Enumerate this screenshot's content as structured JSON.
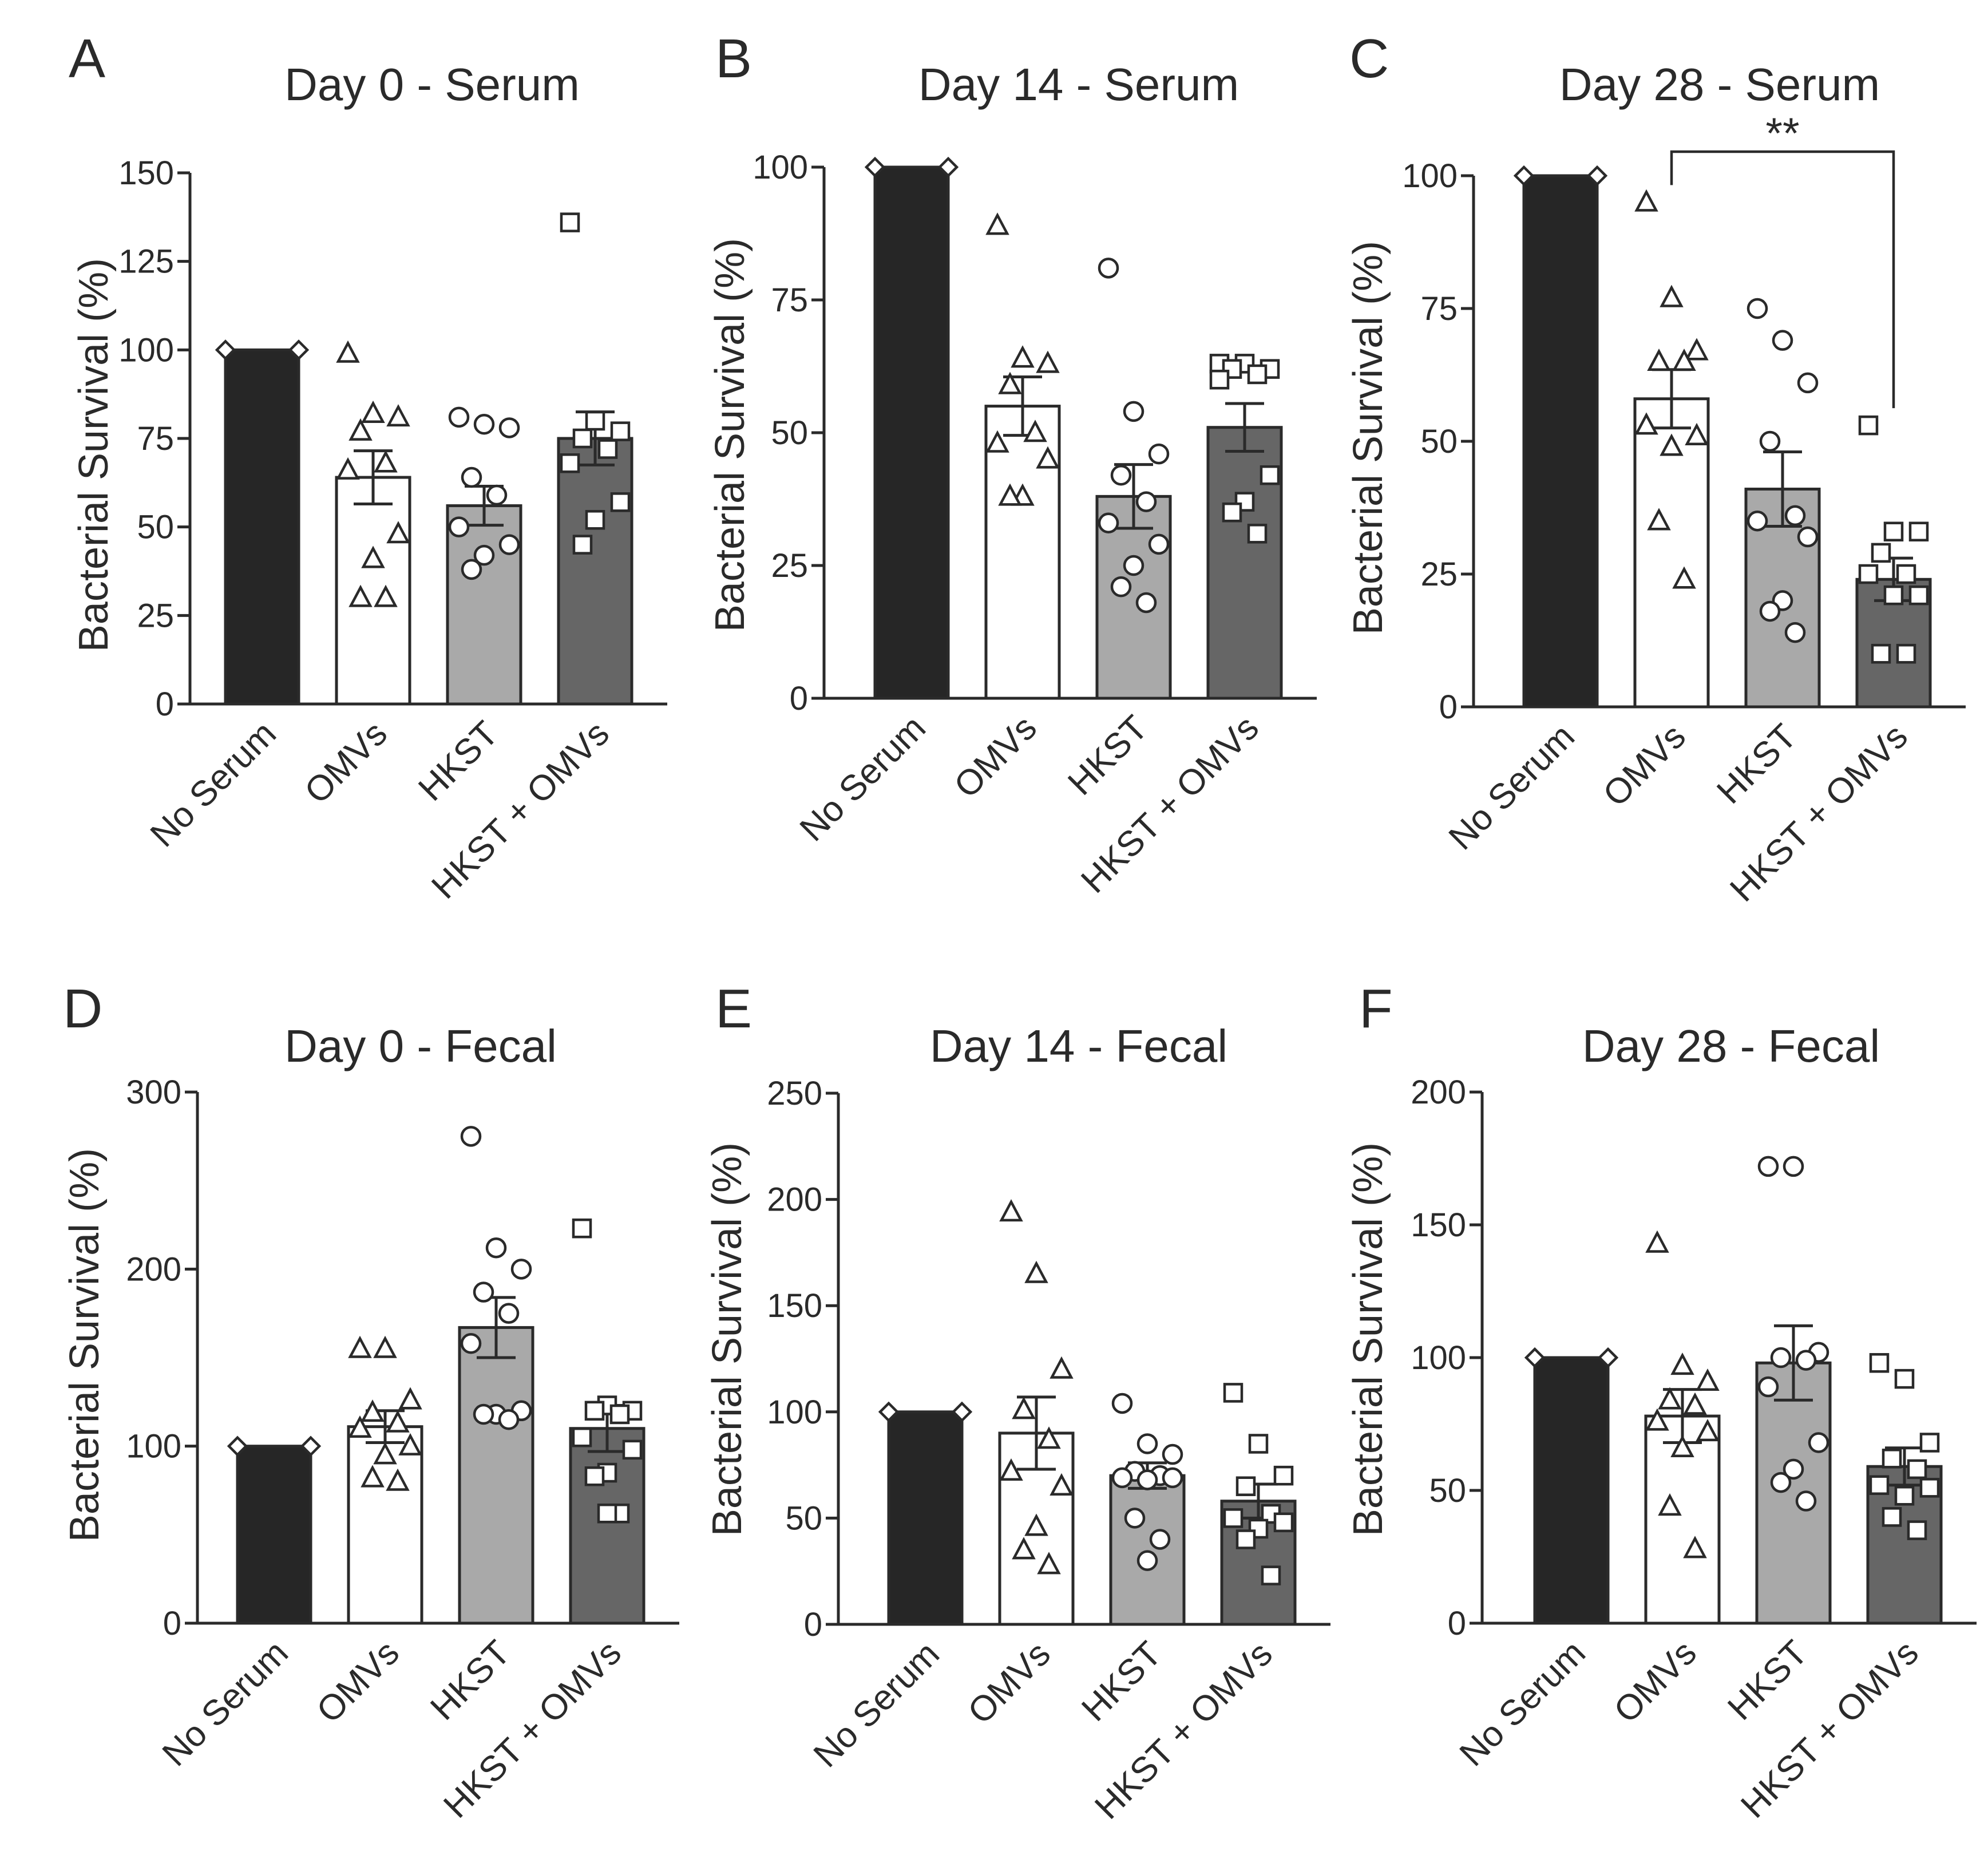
{
  "chart_data": [
    {
      "panel": "A",
      "type": "bar",
      "title": "Day 0 - Serum",
      "ylabel": "Bacterial Survival (%)",
      "ylim": [
        0,
        150
      ],
      "yticks": [
        0,
        25,
        50,
        75,
        100,
        125,
        150
      ],
      "categories": [
        "No Serum",
        "OMVs",
        "HKST",
        "HKST + OMVs"
      ],
      "bar_colors": [
        "#262626",
        "#ffffff",
        "#a9a9a9",
        "#666666"
      ],
      "markers": [
        "diamond",
        "triangle",
        "circle",
        "square"
      ],
      "values": [
        100,
        64,
        56,
        75
      ],
      "sem": [
        0,
        7.5,
        5.5,
        7.5
      ],
      "points": [
        [
          100,
          100
        ],
        [
          99,
          82,
          81,
          77,
          68,
          66,
          48,
          41,
          30,
          30
        ],
        [
          81,
          79,
          78,
          64,
          59,
          50,
          45,
          42,
          38
        ],
        [
          136,
          80,
          77,
          75,
          72,
          68,
          57,
          52,
          45
        ]
      ],
      "significance": null
    },
    {
      "panel": "B",
      "type": "bar",
      "title": "Day 14 - Serum",
      "ylabel": "Bacterial Survival (%)",
      "ylim": [
        0,
        100
      ],
      "yticks": [
        0,
        25,
        50,
        75,
        100
      ],
      "categories": [
        "No Serum",
        "OMVs",
        "HKST",
        "HKST + OMVs"
      ],
      "bar_colors": [
        "#262626",
        "#ffffff",
        "#a9a9a9",
        "#666666"
      ],
      "markers": [
        "diamond",
        "triangle",
        "circle",
        "square"
      ],
      "values": [
        100,
        55,
        38,
        51
      ],
      "sem": [
        0,
        5.5,
        6,
        4.5
      ],
      "points": [
        [
          100,
          100
        ],
        [
          89,
          64,
          63,
          59,
          50,
          48,
          45,
          38,
          38
        ],
        [
          81,
          54,
          46,
          42,
          37,
          33,
          29,
          25,
          21,
          18
        ],
        [
          63,
          63,
          62,
          62,
          61,
          60,
          42,
          37,
          35,
          31
        ]
      ],
      "significance": null
    },
    {
      "panel": "C",
      "type": "bar",
      "title": "Day 28 - Serum",
      "ylabel": "Bacterial Survival (%)",
      "ylim": [
        0,
        100
      ],
      "yticks": [
        0,
        25,
        50,
        75,
        100
      ],
      "categories": [
        "No Serum",
        "OMVs",
        "HKST",
        "HKST + OMVs"
      ],
      "bar_colors": [
        "#262626",
        "#ffffff",
        "#a9a9a9",
        "#666666"
      ],
      "markers": [
        "diamond",
        "triangle",
        "circle",
        "square"
      ],
      "values": [
        100,
        58,
        41,
        24
      ],
      "sem": [
        0,
        5.5,
        7,
        4
      ],
      "points": [
        [
          100,
          100
        ],
        [
          95,
          77,
          67,
          65,
          65,
          53,
          51,
          49,
          35,
          24
        ],
        [
          75,
          69,
          61,
          50,
          36,
          35,
          32,
          20,
          18,
          14
        ],
        [
          53,
          33,
          33,
          29,
          25,
          25,
          21,
          21,
          10,
          10
        ]
      ],
      "significance": {
        "from": 1,
        "to": 3,
        "label": "**"
      }
    },
    {
      "panel": "D",
      "type": "bar",
      "title": "Day 0 - Fecal",
      "ylabel": "Bacterial Survival (%)",
      "ylim": [
        0,
        300
      ],
      "yticks": [
        0,
        100,
        200,
        300
      ],
      "categories": [
        "No Serum",
        "OMVs",
        "HKST",
        "HKST + OMVs"
      ],
      "bar_colors": [
        "#262626",
        "#ffffff",
        "#a9a9a9",
        "#666666"
      ],
      "markers": [
        "diamond",
        "triangle",
        "circle",
        "square"
      ],
      "values": [
        100,
        111,
        167,
        110
      ],
      "sem": [
        0,
        9,
        17,
        13
      ],
      "points": [
        [
          100,
          100
        ],
        [
          155,
          155,
          126,
          119,
          113,
          110,
          100,
          95,
          82,
          80
        ],
        [
          275,
          212,
          200,
          187,
          175,
          158,
          120,
          118,
          118,
          115
        ],
        [
          223,
          123,
          120,
          120,
          118,
          105,
          98,
          85,
          83,
          62,
          62
        ]
      ],
      "significance": null
    },
    {
      "panel": "E",
      "type": "bar",
      "title": "Day 14 - Fecal",
      "ylabel": "Bacterial Survival (%)",
      "ylim": [
        0,
        250
      ],
      "yticks": [
        0,
        50,
        100,
        150,
        200,
        250
      ],
      "categories": [
        "No Serum",
        "OMVs",
        "HKST",
        "HKST + OMVs"
      ],
      "bar_colors": [
        "#262626",
        "#ffffff",
        "#a9a9a9",
        "#666666"
      ],
      "markers": [
        "diamond",
        "triangle",
        "circle",
        "square"
      ],
      "values": [
        100,
        90,
        70,
        58
      ],
      "sem": [
        0,
        17,
        6,
        8
      ],
      "points": [
        [
          100,
          100
        ],
        [
          194,
          165,
          120,
          101,
          87,
          72,
          65,
          46,
          35,
          28
        ],
        [
          104,
          85,
          80,
          72,
          70,
          69,
          69,
          68,
          50,
          40,
          30
        ],
        [
          109,
          85,
          70,
          65,
          52,
          50,
          48,
          45,
          40,
          23
        ]
      ],
      "significance": null
    },
    {
      "panel": "F",
      "type": "bar",
      "title": "Day 28 - Fecal",
      "ylabel": "Bacterial Survival (%)",
      "ylim": [
        0,
        200
      ],
      "yticks": [
        0,
        50,
        100,
        150,
        200
      ],
      "categories": [
        "No Serum",
        "OMVs",
        "HKST",
        "HKST + OMVs"
      ],
      "bar_colors": [
        "#262626",
        "#ffffff",
        "#a9a9a9",
        "#666666"
      ],
      "markers": [
        "diamond",
        "triangle",
        "circle",
        "square"
      ],
      "values": [
        100,
        78,
        98,
        59
      ],
      "sem": [
        0,
        10,
        14,
        7
      ],
      "points": [
        [
          100,
          100
        ],
        [
          143,
          97,
          91,
          84,
          82,
          76,
          72,
          66,
          44,
          28
        ],
        [
          172,
          172,
          102,
          100,
          99,
          89,
          68,
          58,
          53,
          46
        ],
        [
          98,
          92,
          68,
          62,
          58,
          52,
          51,
          48,
          40,
          35
        ]
      ],
      "significance": null
    }
  ]
}
